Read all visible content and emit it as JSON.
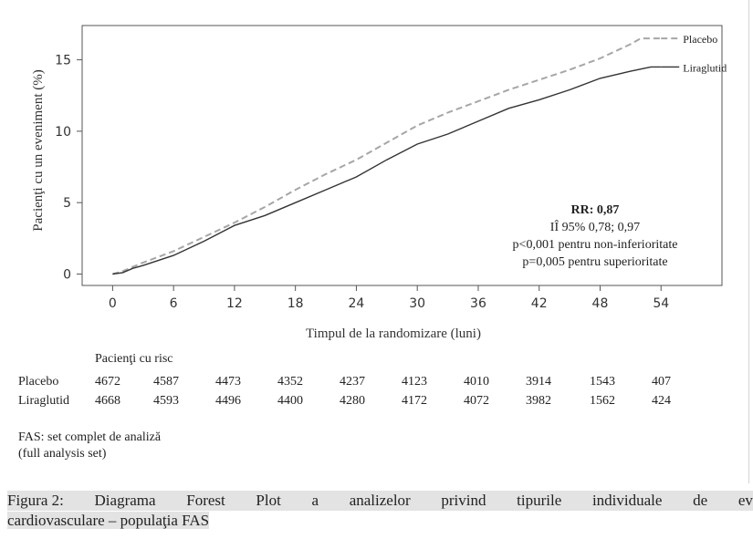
{
  "chart_data": {
    "type": "line",
    "xlabel": "Timpul de la randomizare (luni)",
    "ylabel": "Pacienţi cu un eveniment (%)",
    "xlim": [
      -3,
      60
    ],
    "ylim": [
      -0.8,
      17.4
    ],
    "xticks": [
      0,
      6,
      12,
      18,
      24,
      30,
      36,
      42,
      48,
      54
    ],
    "yticks": [
      0,
      5,
      10,
      15
    ],
    "grid": false,
    "legend": "right-end-of-lines",
    "series": [
      {
        "name": "Placebo",
        "color": "#a6a6a6",
        "style": "dashed",
        "points": [
          [
            0,
            0
          ],
          [
            1,
            0.2
          ],
          [
            2,
            0.5
          ],
          [
            3,
            0.8
          ],
          [
            6,
            1.6
          ],
          [
            9,
            2.6
          ],
          [
            12,
            3.6
          ],
          [
            15,
            4.7
          ],
          [
            18,
            5.9
          ],
          [
            21,
            7.0
          ],
          [
            24,
            8.0
          ],
          [
            27,
            9.2
          ],
          [
            30,
            10.4
          ],
          [
            33,
            11.3
          ],
          [
            36,
            12.1
          ],
          [
            39,
            12.9
          ],
          [
            42,
            13.6
          ],
          [
            45,
            14.3
          ],
          [
            48,
            15.1
          ],
          [
            51,
            16.1
          ],
          [
            52,
            16.5
          ],
          [
            54,
            16.5
          ]
        ]
      },
      {
        "name": "Liraglutid",
        "color": "#333333",
        "style": "solid",
        "points": [
          [
            0,
            0
          ],
          [
            1,
            0.1
          ],
          [
            2,
            0.4
          ],
          [
            3,
            0.6
          ],
          [
            6,
            1.3
          ],
          [
            9,
            2.3
          ],
          [
            12,
            3.4
          ],
          [
            15,
            4.1
          ],
          [
            18,
            5.0
          ],
          [
            21,
            5.9
          ],
          [
            24,
            6.8
          ],
          [
            27,
            8.0
          ],
          [
            30,
            9.1
          ],
          [
            33,
            9.8
          ],
          [
            36,
            10.7
          ],
          [
            39,
            11.6
          ],
          [
            42,
            12.2
          ],
          [
            45,
            12.9
          ],
          [
            48,
            13.7
          ],
          [
            51,
            14.2
          ],
          [
            53,
            14.5
          ],
          [
            54,
            14.5
          ]
        ]
      }
    ],
    "annotation": {
      "line1": "RR: 0,87",
      "line2": "IÎ 95% 0,78; 0,97",
      "line3": "p<0,001 pentru non-inferioritate",
      "line4": "p=0,005 pentru superioritate"
    }
  },
  "risk_table": {
    "title": "Pacienţi cu risc",
    "rows": [
      {
        "name": "Placebo",
        "values": [
          "4672",
          "4587",
          "4473",
          "4352",
          "4237",
          "4123",
          "4010",
          "3914",
          "1543",
          "407"
        ]
      },
      {
        "name": "Liraglutid",
        "values": [
          "4668",
          "4593",
          "4496",
          "4400",
          "4280",
          "4172",
          "4072",
          "3982",
          "1562",
          "424"
        ]
      }
    ]
  },
  "note": {
    "line1": "FAS: set complet de analiză",
    "line2": "(full analysis set)"
  },
  "caption": {
    "words": [
      "Figura 2:",
      "Diagrama",
      "Forest",
      "Plot",
      "a",
      "analizelor",
      "privind",
      "tipurile",
      "individuale",
      "de",
      "ev"
    ],
    "line2": "cardiovasculare – populaţia FAS"
  }
}
